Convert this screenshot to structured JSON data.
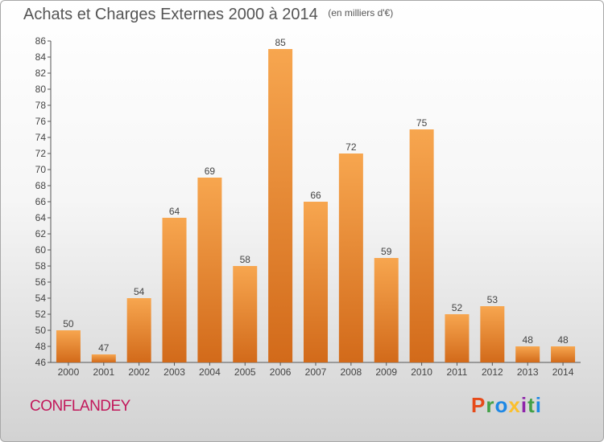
{
  "header": {
    "title": "Achats et Charges Externes 2000 à 2014",
    "unit": "(en milliers d'€)"
  },
  "footer": {
    "location": "CONFLANDEY",
    "brand": "Proxiti"
  },
  "colors": {
    "bar_light": "#f7a64f",
    "bar_dark": "#d26a1a",
    "location": "#c2185b",
    "logo_letters": [
      "#e64a19",
      "#43a047",
      "#1e88e5",
      "#fbc02d",
      "#8e24aa",
      "#43a047",
      "#1e88e5"
    ]
  },
  "chart_data": {
    "type": "bar",
    "title": "Achats et Charges Externes 2000 à 2014",
    "subtitle": "(en milliers d'€)",
    "categories": [
      "2000",
      "2001",
      "2002",
      "2003",
      "2004",
      "2005",
      "2006",
      "2007",
      "2008",
      "2009",
      "2010",
      "2011",
      "2012",
      "2013",
      "2014"
    ],
    "values": [
      50,
      47,
      54,
      64,
      69,
      58,
      85,
      66,
      72,
      59,
      75,
      52,
      53,
      48,
      48
    ],
    "ylim": [
      46,
      86
    ],
    "yticks": [
      46,
      48,
      50,
      52,
      54,
      56,
      58,
      60,
      62,
      64,
      66,
      68,
      70,
      72,
      74,
      76,
      78,
      80,
      82,
      84,
      86
    ],
    "data_labels": true,
    "grid": false,
    "xlabel": "",
    "ylabel": ""
  }
}
